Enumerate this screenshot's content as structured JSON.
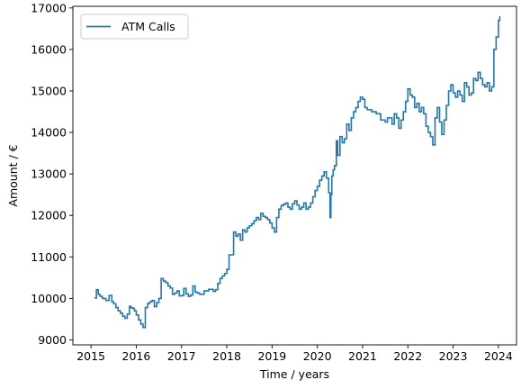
{
  "chart_data": {
    "type": "line",
    "title": "",
    "xlabel": "Time / years",
    "ylabel": "Amount / €",
    "xlim": [
      2014.6,
      2024.4
    ],
    "ylim": [
      8880,
      17040
    ],
    "xticks": [
      2015,
      2016,
      2017,
      2018,
      2019,
      2020,
      2021,
      2022,
      2023,
      2024
    ],
    "xtick_labels": [
      "2015",
      "2016",
      "2017",
      "2018",
      "2019",
      "2020",
      "2021",
      "2022",
      "2023",
      "2024"
    ],
    "yticks": [
      9000,
      10000,
      11000,
      12000,
      13000,
      14000,
      15000,
      16000,
      17000
    ],
    "ytick_labels": [
      "9000",
      "10000",
      "11000",
      "12000",
      "13000",
      "14000",
      "15000",
      "16000",
      "17000"
    ],
    "grid": false,
    "legend": "top-left",
    "step": true,
    "series": [
      {
        "name": "ATM Calls",
        "color": "#1f77b4",
        "x": [
          2015.08,
          2015.12,
          2015.16,
          2015.2,
          2015.25,
          2015.33,
          2015.4,
          2015.46,
          2015.5,
          2015.55,
          2015.6,
          2015.65,
          2015.7,
          2015.75,
          2015.8,
          2015.85,
          2015.88,
          2015.92,
          2015.96,
          2016.0,
          2016.05,
          2016.1,
          2016.15,
          2016.2,
          2016.25,
          2016.3,
          2016.35,
          2016.4,
          2016.45,
          2016.5,
          2016.55,
          2016.6,
          2016.65,
          2016.7,
          2016.75,
          2016.8,
          2016.85,
          2016.9,
          2016.95,
          2017.0,
          2017.05,
          2017.1,
          2017.15,
          2017.2,
          2017.25,
          2017.3,
          2017.35,
          2017.4,
          2017.5,
          2017.6,
          2017.7,
          2017.75,
          2017.8,
          2017.85,
          2017.9,
          2017.95,
          2018.0,
          2018.05,
          2018.1,
          2018.15,
          2018.2,
          2018.25,
          2018.3,
          2018.35,
          2018.4,
          2018.45,
          2018.5,
          2018.55,
          2018.6,
          2018.65,
          2018.7,
          2018.75,
          2018.8,
          2018.85,
          2018.9,
          2018.95,
          2019.0,
          2019.05,
          2019.1,
          2019.15,
          2019.2,
          2019.25,
          2019.3,
          2019.35,
          2019.4,
          2019.45,
          2019.5,
          2019.55,
          2019.6,
          2019.65,
          2019.7,
          2019.75,
          2019.8,
          2019.85,
          2019.9,
          2019.95,
          2020.0,
          2020.05,
          2020.1,
          2020.15,
          2020.2,
          2020.25,
          2020.28,
          2020.3,
          2020.32,
          2020.35,
          2020.38,
          2020.42,
          2020.45,
          2020.5,
          2020.55,
          2020.6,
          2020.65,
          2020.7,
          2020.75,
          2020.8,
          2020.85,
          2020.9,
          2020.95,
          2021.0,
          2021.05,
          2021.1,
          2021.2,
          2021.3,
          2021.4,
          2021.5,
          2021.55,
          2021.6,
          2021.65,
          2021.7,
          2021.75,
          2021.8,
          2021.85,
          2021.9,
          2021.95,
          2022.0,
          2022.05,
          2022.1,
          2022.15,
          2022.2,
          2022.25,
          2022.3,
          2022.35,
          2022.4,
          2022.45,
          2022.5,
          2022.55,
          2022.6,
          2022.65,
          2022.7,
          2022.75,
          2022.8,
          2022.85,
          2022.9,
          2022.95,
          2023.0,
          2023.05,
          2023.1,
          2023.15,
          2023.2,
          2023.25,
          2023.3,
          2023.35,
          2023.4,
          2023.45,
          2023.5,
          2023.55,
          2023.6,
          2023.65,
          2023.7,
          2023.75,
          2023.8,
          2023.85,
          2023.9,
          2023.95,
          2024.0,
          2024.03
        ],
        "y": [
          10010,
          10210,
          10100,
          10050,
          10000,
          9950,
          10070,
          9920,
          9870,
          9780,
          9700,
          9640,
          9570,
          9520,
          9620,
          9810,
          9780,
          9760,
          9700,
          9600,
          9480,
          9380,
          9300,
          9780,
          9880,
          9920,
          9950,
          9800,
          9900,
          10000,
          10480,
          10420,
          10380,
          10300,
          10250,
          10100,
          10130,
          10180,
          10060,
          10070,
          10240,
          10110,
          10050,
          10080,
          10300,
          10150,
          10130,
          10100,
          10180,
          10220,
          10170,
          10210,
          10360,
          10480,
          10540,
          10600,
          10700,
          11050,
          11050,
          11600,
          11500,
          11550,
          11400,
          11650,
          11600,
          11700,
          11750,
          11800,
          11870,
          11950,
          11900,
          12050,
          11980,
          11950,
          11900,
          11820,
          11700,
          11600,
          11950,
          12150,
          12240,
          12270,
          12300,
          12200,
          12150,
          12280,
          12350,
          12250,
          12150,
          12200,
          12300,
          12150,
          12200,
          12300,
          12450,
          12600,
          12700,
          12850,
          12950,
          13050,
          12900,
          12550,
          11950,
          12500,
          12950,
          13100,
          13200,
          13800,
          13450,
          13900,
          13750,
          13850,
          14200,
          14050,
          14350,
          14500,
          14600,
          14750,
          14850,
          14800,
          14600,
          14550,
          14500,
          14450,
          14300,
          14250,
          14350,
          14350,
          14200,
          14450,
          14350,
          14100,
          14300,
          14500,
          14750,
          15050,
          14900,
          14850,
          14600,
          14700,
          14500,
          14600,
          14450,
          14150,
          14000,
          13900,
          13700,
          14350,
          14600,
          14250,
          13950,
          14300,
          14650,
          15000,
          15150,
          14950,
          14850,
          15000,
          14900,
          14750,
          15200,
          15100,
          14900,
          14950,
          15300,
          15250,
          15450,
          15300,
          15150,
          15100,
          15200,
          15000,
          15100,
          16000,
          16300,
          16700,
          16800
        ]
      }
    ]
  }
}
